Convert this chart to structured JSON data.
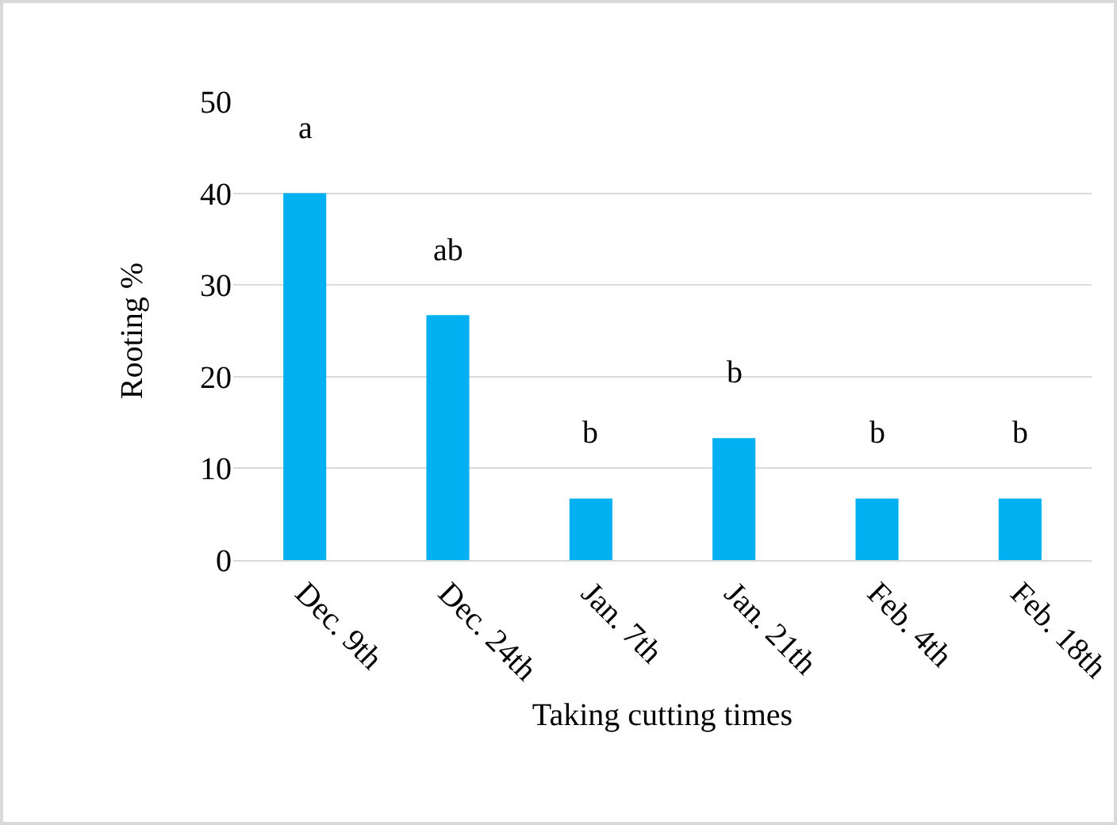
{
  "chart_data": {
    "type": "bar",
    "xlabel": "Taking cutting times",
    "ylabel": "Rooting %",
    "categories": [
      "Dec. 9th",
      "Dec. 24th",
      "Jan. 7th",
      "Jan. 21th",
      "Feb. 4th",
      "Feb. 18th"
    ],
    "values": [
      40,
      26.7,
      6.7,
      13.3,
      6.7,
      6.7
    ],
    "color": "#00b0f0",
    "ylim": [
      0,
      50
    ],
    "yticks": [
      0,
      10,
      20,
      30,
      40,
      50
    ],
    "grid": "y",
    "annotations": [
      "a",
      "ab",
      "b",
      "b",
      "b",
      "b"
    ]
  }
}
